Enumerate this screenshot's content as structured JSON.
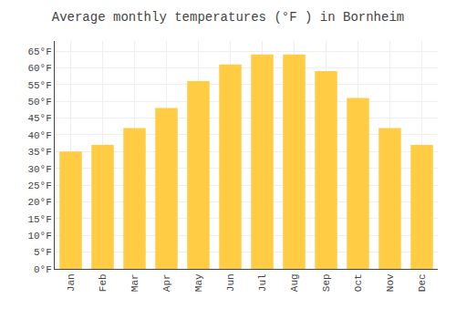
{
  "chart_data": {
    "type": "bar",
    "title": "Average monthly temperatures (°F ) in Bornheim",
    "categories": [
      "Jan",
      "Feb",
      "Mar",
      "Apr",
      "May",
      "Jun",
      "Jul",
      "Aug",
      "Sep",
      "Oct",
      "Nov",
      "Dec"
    ],
    "values": [
      35,
      37,
      42,
      48,
      56,
      61,
      64,
      64,
      59,
      51,
      42,
      37
    ],
    "color": "#FFCC44",
    "ylim": [
      0,
      68
    ],
    "yticks": [
      {
        "value": 0,
        "label": "0°F"
      },
      {
        "value": 5,
        "label": "5°F"
      },
      {
        "value": 10,
        "label": "10°F"
      },
      {
        "value": 15,
        "label": "15°F"
      },
      {
        "value": 20,
        "label": "20°F"
      },
      {
        "value": 25,
        "label": "25°F"
      },
      {
        "value": 30,
        "label": "30°F"
      },
      {
        "value": 35,
        "label": "35°F"
      },
      {
        "value": 40,
        "label": "40°F"
      },
      {
        "value": 45,
        "label": "45°F"
      },
      {
        "value": 50,
        "label": "50°F"
      },
      {
        "value": 55,
        "label": "55°F"
      },
      {
        "value": 60,
        "label": "60°F"
      },
      {
        "value": 65,
        "label": "65°F"
      }
    ],
    "grid": true
  }
}
